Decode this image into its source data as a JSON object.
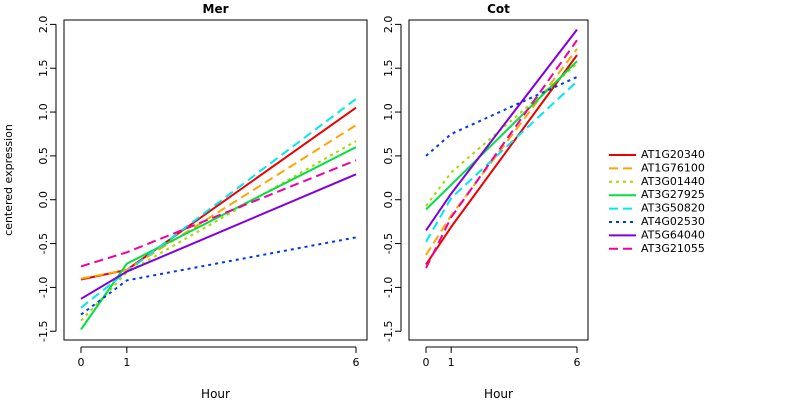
{
  "chart_data": [
    {
      "type": "line",
      "title": "Mer",
      "xlabel": "Hour",
      "ylabel": "centered expression",
      "x": [
        "0",
        "1",
        "6"
      ],
      "ylim": [
        -1.6,
        2.05
      ],
      "yticks": [
        "-1.5",
        "-1.0",
        "-0.5",
        "0.0",
        "0.5",
        "1.0",
        "1.5",
        "2.0"
      ],
      "series": [
        {
          "name": "AT1G20340",
          "values": [
            -0.91,
            -0.8,
            1.05
          ]
        },
        {
          "name": "AT1G76100",
          "values": [
            -0.9,
            -0.8,
            0.85
          ]
        },
        {
          "name": "AT3G01440",
          "values": [
            -1.38,
            -0.83,
            0.67
          ]
        },
        {
          "name": "AT3G27925",
          "values": [
            -1.48,
            -0.73,
            0.6
          ]
        },
        {
          "name": "AT3G50820",
          "values": [
            -1.23,
            -0.82,
            1.15
          ]
        },
        {
          "name": "AT4G02530",
          "values": [
            -1.31,
            -0.92,
            -0.43
          ]
        },
        {
          "name": "AT5G64040",
          "values": [
            -1.13,
            -0.82,
            0.29
          ]
        },
        {
          "name": "AT3G21055",
          "values": [
            -0.76,
            -0.6,
            0.45
          ]
        }
      ]
    },
    {
      "type": "line",
      "title": "Cot",
      "xlabel": "Hour",
      "ylabel": "",
      "x": [
        "0",
        "1",
        "6"
      ],
      "ylim": [
        -1.6,
        2.05
      ],
      "yticks": [
        "-1.5",
        "-1.0",
        "-0.5",
        "0.0",
        "0.5",
        "1.0",
        "1.5",
        "2.0"
      ],
      "series": [
        {
          "name": "AT1G20340",
          "values": [
            -0.74,
            -0.31,
            1.65
          ]
        },
        {
          "name": "AT1G76100",
          "values": [
            -0.63,
            -0.18,
            1.72
          ]
        },
        {
          "name": "AT3G01440",
          "values": [
            -0.07,
            0.31,
            1.55
          ]
        },
        {
          "name": "AT3G27925",
          "values": [
            -0.11,
            0.17,
            1.58
          ]
        },
        {
          "name": "AT3G50820",
          "values": [
            -0.48,
            0.02,
            1.35
          ]
        },
        {
          "name": "AT4G02530",
          "values": [
            0.5,
            0.75,
            1.4
          ]
        },
        {
          "name": "AT5G64040",
          "values": [
            -0.35,
            0.07,
            1.94
          ]
        },
        {
          "name": "AT3G21055",
          "values": [
            -0.78,
            -0.2,
            1.82
          ]
        }
      ]
    }
  ],
  "legend": {
    "placement": "right",
    "entries": [
      {
        "name": "AT1G20340",
        "color": "#ee0000",
        "dash": "solid"
      },
      {
        "name": "AT1G76100",
        "color": "#ffa500",
        "dash": "dashed"
      },
      {
        "name": "AT3G01440",
        "color": "#a8d800",
        "dash": "dotted"
      },
      {
        "name": "AT3G27925",
        "color": "#00e040",
        "dash": "solid"
      },
      {
        "name": "AT3G50820",
        "color": "#00e8f0",
        "dash": "dashed"
      },
      {
        "name": "AT4G02530",
        "color": "#0038ee",
        "dash": "dotted"
      },
      {
        "name": "AT5G64040",
        "color": "#8000e0",
        "dash": "solid"
      },
      {
        "name": "AT3G21055",
        "color": "#f000a0",
        "dash": "dashed"
      }
    ]
  }
}
